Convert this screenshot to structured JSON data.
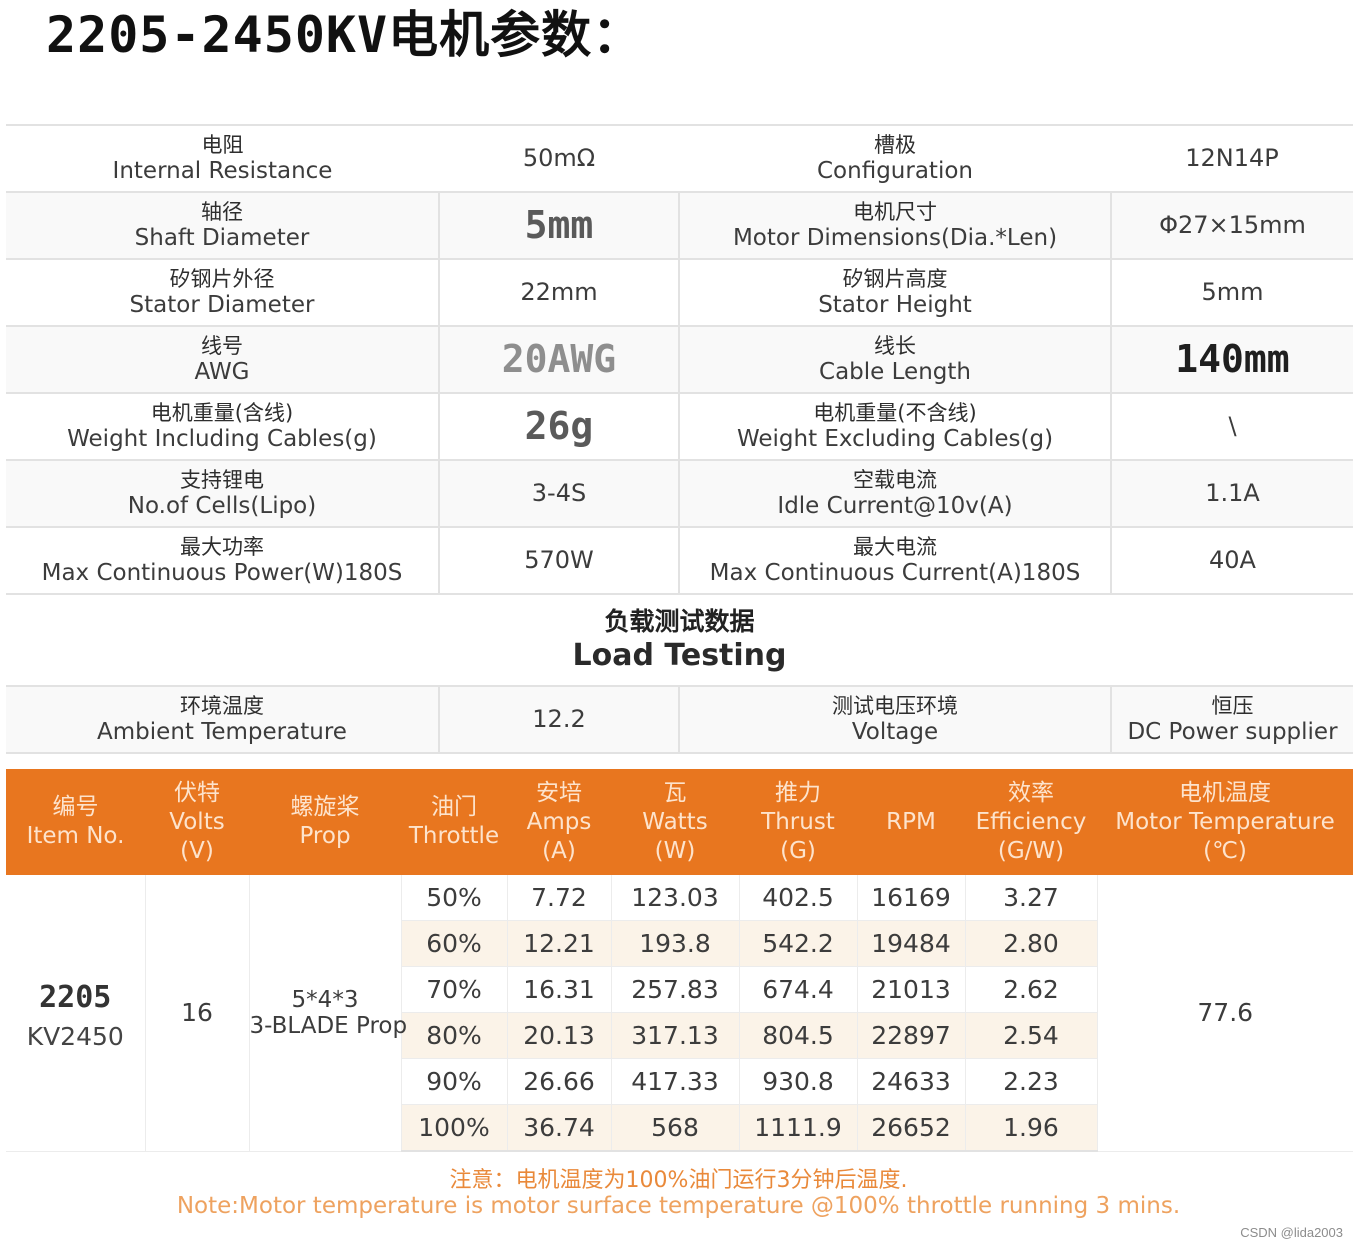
{
  "title": {
    "code": "2205-2450KV",
    "cn": "电机参数："
  },
  "specs": [
    {
      "left_cn": "电阻",
      "left_en": "Internal Resistance",
      "left_value": "50mΩ",
      "right_cn": "槽极",
      "right_en": "Configuration",
      "right_value": "12N14P"
    },
    {
      "left_cn": "轴径",
      "left_en": "Shaft Diameter",
      "left_value": "5mm",
      "right_cn": "电机尺寸",
      "right_en": "Motor Dimensions(Dia.*Len)",
      "right_value": "Φ27×15mm"
    },
    {
      "left_cn": "矽钢片外径",
      "left_en": "Stator Diameter",
      "left_value": "22mm",
      "right_cn": "矽钢片高度",
      "right_en": "Stator Height",
      "right_value": "5mm"
    },
    {
      "left_cn": "线号",
      "left_en": "AWG",
      "left_value": "20AWG",
      "right_cn": "线长",
      "right_en": "Cable Length",
      "right_value": "140mm"
    },
    {
      "left_cn": "电机重量(含线)",
      "left_en": "Weight Including Cables(g)",
      "left_value": "26g",
      "right_cn": "电机重量(不含线)",
      "right_en": "Weight Excluding Cables(g)",
      "right_value": "\\"
    },
    {
      "left_cn": "支持锂电",
      "left_en": "No.of Cells(Lipo)",
      "left_value": "3-4S",
      "right_cn": "空载电流",
      "right_en": "Idle Current@10v(A)",
      "right_value": "1.1A"
    },
    {
      "left_cn": "最大功率",
      "left_en": "Max Continuous Power(W)180S",
      "left_value": "570W",
      "right_cn": "最大电流",
      "right_en": "Max Continuous Current(A)180S",
      "right_value": "40A"
    }
  ],
  "load_heading": {
    "cn": "负载测试数据",
    "en": "Load Testing"
  },
  "environment": {
    "ambient_cn": "环境温度",
    "ambient_en": "Ambient Temperature",
    "ambient_value": "12.2",
    "voltage_cn": "测试电压环境",
    "voltage_en": "Voltage",
    "supply_cn": "恒压",
    "supply_en": "DC Power supplier"
  },
  "test_headers": [
    {
      "cn": "编号",
      "en": "Item No.",
      "unit": ""
    },
    {
      "cn": "伏特",
      "en": "Volts",
      "unit": "(V)"
    },
    {
      "cn": "螺旋桨",
      "en": "Prop",
      "unit": ""
    },
    {
      "cn": "油门",
      "en": "Throttle",
      "unit": ""
    },
    {
      "cn": "安培",
      "en": "Amps",
      "unit": "(A)"
    },
    {
      "cn": "瓦",
      "en": "Watts",
      "unit": "(W)"
    },
    {
      "cn": "推力",
      "en": "Thrust",
      "unit": "(G)"
    },
    {
      "cn": "",
      "en": "RPM",
      "unit": ""
    },
    {
      "cn": "效率",
      "en": "Efficiency",
      "unit": "(G/W)"
    },
    {
      "cn": "电机温度",
      "en": "Motor Temperature",
      "unit": "(℃)"
    }
  ],
  "test_group": {
    "model": "2205",
    "kv": "KV2450",
    "volts": "16",
    "prop_line1": "5*4*3",
    "prop_line2": "3-BLADE Prop",
    "motor_temp": "77.6"
  },
  "test_rows": [
    {
      "throttle": "50%",
      "amps": "7.72",
      "watts": "123.03",
      "thrust": "402.5",
      "rpm": "16169",
      "efficiency": "3.27"
    },
    {
      "throttle": "60%",
      "amps": "12.21",
      "watts": "193.8",
      "thrust": "542.2",
      "rpm": "19484",
      "efficiency": "2.80"
    },
    {
      "throttle": "70%",
      "amps": "16.31",
      "watts": "257.83",
      "thrust": "674.4",
      "rpm": "21013",
      "efficiency": "2.62"
    },
    {
      "throttle": "80%",
      "amps": "20.13",
      "watts": "317.13",
      "thrust": "804.5",
      "rpm": "22897",
      "efficiency": "2.54"
    },
    {
      "throttle": "90%",
      "amps": "26.66",
      "watts": "417.33",
      "thrust": "930.8",
      "rpm": "24633",
      "efficiency": "2.23"
    },
    {
      "throttle": "100%",
      "amps": "36.74",
      "watts": "568",
      "thrust": "1111.9",
      "rpm": "26652",
      "efficiency": "1.96"
    }
  ],
  "notes": {
    "cn": "注意：电机温度为100%油门运行3分钟后温度.",
    "en": "Note:Motor temperature is motor surface temperature @100% throttle running 3 mins."
  },
  "watermark": "CSDN @lida2003",
  "colors": {
    "header_orange": "#e8761f",
    "note_orange": "#eea25f",
    "stripe": "#fbf3e8"
  }
}
